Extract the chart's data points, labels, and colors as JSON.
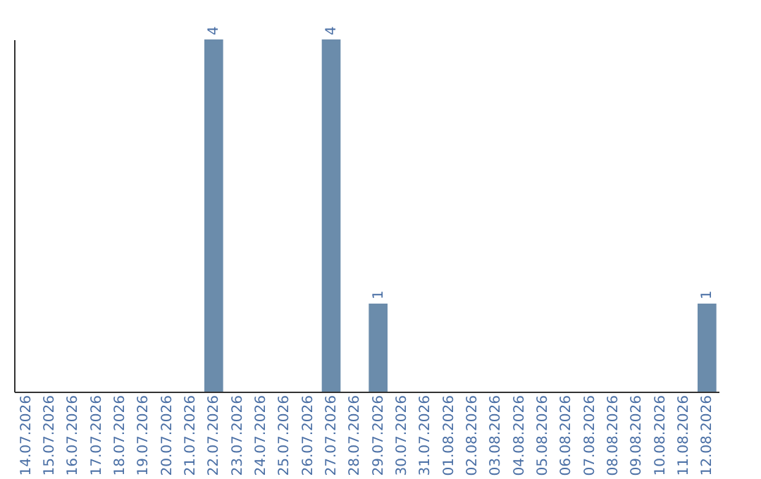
{
  "chart_data": {
    "type": "bar",
    "categories": [
      "14.07.2026",
      "15.07.2026",
      "16.07.2026",
      "17.07.2026",
      "18.07.2026",
      "19.07.2026",
      "20.07.2026",
      "21.07.2026",
      "22.07.2026",
      "23.07.2026",
      "24.07.2026",
      "25.07.2026",
      "26.07.2026",
      "27.07.2026",
      "28.07.2026",
      "29.07.2026",
      "30.07.2026",
      "31.07.2026",
      "01.08.2026",
      "02.08.2026",
      "03.08.2026",
      "04.08.2026",
      "05.08.2026",
      "06.08.2026",
      "07.08.2026",
      "08.08.2026",
      "09.08.2026",
      "10.08.2026",
      "11.08.2026",
      "12.08.2026"
    ],
    "values": [
      0,
      0,
      0,
      0,
      0,
      0,
      0,
      0,
      4,
      0,
      0,
      0,
      0,
      4,
      0,
      1,
      0,
      0,
      0,
      0,
      0,
      0,
      0,
      0,
      0,
      0,
      0,
      0,
      0,
      1
    ],
    "value_labels": [
      null,
      null,
      null,
      null,
      null,
      null,
      null,
      null,
      "4",
      null,
      null,
      null,
      null,
      "4",
      null,
      "1",
      null,
      null,
      null,
      null,
      null,
      null,
      null,
      null,
      null,
      null,
      null,
      null,
      null,
      "1"
    ],
    "color": "#6b8cab",
    "tick_labels": "x",
    "grid": false
  }
}
